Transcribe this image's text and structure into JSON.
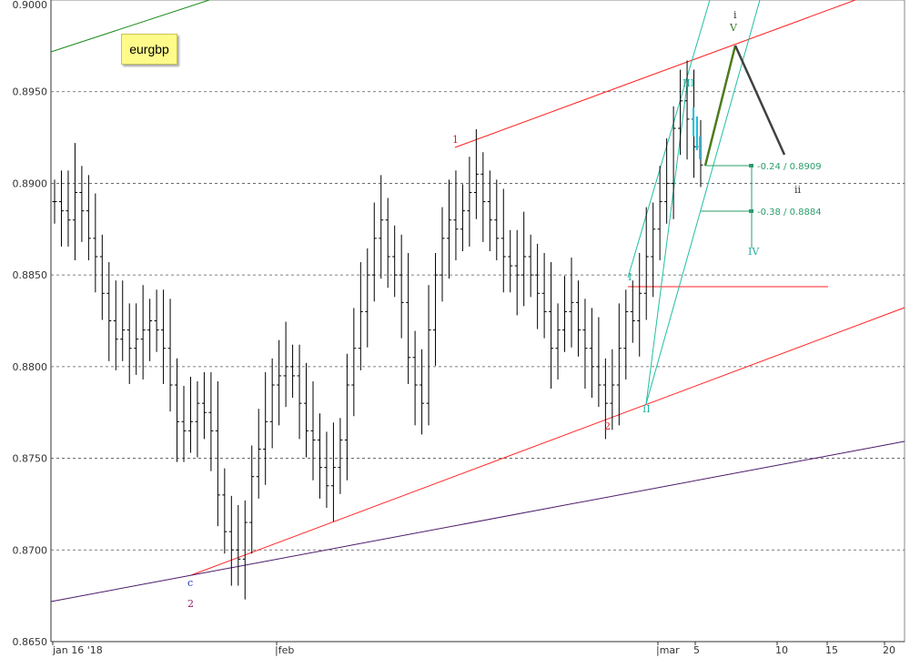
{
  "symbol": "eurgbp",
  "colors": {
    "bars": "#000000",
    "grid": "#555555",
    "red_line": "#ff2020",
    "green_line": "#1a8a1a",
    "cyan_line": "#20c0a0",
    "purple_line": "#4b1a6b",
    "fib": "#2a9d6a",
    "proj_up": "#4c7a1e",
    "proj_down": "#404040",
    "label_red": "#e02020",
    "label_blue": "#2030c0",
    "label_purple": "#902060",
    "label_cyan": "#20b0a0",
    "label_green": "#3a7a20"
  },
  "chart_data": {
    "type": "ohlc",
    "ylim": [
      0.865,
      0.9
    ],
    "yticks": [
      "0.9000",
      "0.8950",
      "0.8900",
      "0.8850",
      "0.8800",
      "0.8750",
      "0.8700",
      "0.8650"
    ],
    "ytick_values": [
      0.9,
      0.895,
      0.89,
      0.885,
      0.88,
      0.875,
      0.87,
      0.865
    ],
    "xticks": [
      "jan 16 '18",
      "|feb",
      "|mar",
      "5",
      "10",
      "15",
      "20"
    ],
    "grid": "horizontal dashed",
    "series_close": [
      0.889,
      0.8885,
      0.888,
      0.8895,
      0.8885,
      0.887,
      0.886,
      0.884,
      0.8825,
      0.8815,
      0.882,
      0.881,
      0.8815,
      0.882,
      0.8825,
      0.882,
      0.881,
      0.879,
      0.877,
      0.8765,
      0.877,
      0.878,
      0.8775,
      0.8765,
      0.873,
      0.871,
      0.87,
      0.8695,
      0.8715,
      0.874,
      0.8755,
      0.877,
      0.879,
      0.8795,
      0.88,
      0.8795,
      0.878,
      0.8765,
      0.876,
      0.8745,
      0.8735,
      0.8745,
      0.876,
      0.879,
      0.881,
      0.883,
      0.885,
      0.887,
      0.888,
      0.886,
      0.885,
      0.8835,
      0.8805,
      0.879,
      0.878,
      0.882,
      0.885,
      0.887,
      0.888,
      0.8875,
      0.8885,
      0.8895,
      0.8905,
      0.889,
      0.888,
      0.887,
      0.886,
      0.8855,
      0.885,
      0.886,
      0.885,
      0.884,
      0.883,
      0.881,
      0.882,
      0.883,
      0.8835,
      0.882,
      0.881,
      0.88,
      0.879,
      0.878,
      0.879,
      0.881,
      0.883,
      0.8825,
      0.884,
      0.886,
      0.8875,
      0.889,
      0.89,
      0.893,
      0.8945,
      0.8935,
      0.892,
      0.891
    ],
    "wave_labels": [
      {
        "text": "1",
        "role": "red"
      },
      {
        "text": "2",
        "role": "red"
      },
      {
        "text": "c",
        "role": "blue"
      },
      {
        "text": "2",
        "role": "purple"
      },
      {
        "text": "I",
        "role": "cyan"
      },
      {
        "text": "II",
        "role": "cyan"
      },
      {
        "text": "III",
        "role": "cyan"
      },
      {
        "text": "IV",
        "role": "cyan"
      },
      {
        "text": "V",
        "role": "green"
      },
      {
        "text": "i",
        "role": "dark"
      },
      {
        "text": "ii",
        "role": "dark"
      }
    ],
    "fib_levels": [
      {
        "label": "-0.24 / 0.8909",
        "value": 0.8909
      },
      {
        "label": "-0.38 / 0.8884",
        "value": 0.8884
      }
    ]
  }
}
